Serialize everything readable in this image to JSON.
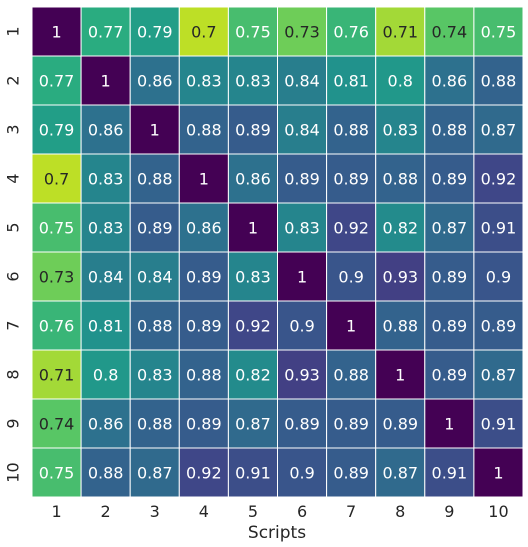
{
  "chart_data": {
    "type": "heatmap",
    "xlabel": "Scripts",
    "ylabel": "",
    "x_categories": [
      "1",
      "2",
      "3",
      "4",
      "5",
      "6",
      "7",
      "8",
      "9",
      "10"
    ],
    "y_categories": [
      "1",
      "2",
      "3",
      "4",
      "5",
      "6",
      "7",
      "8",
      "9",
      "10"
    ],
    "colormap": "viridis",
    "color_range": [
      0.7,
      1.0
    ],
    "cell_border_color": "#ffffff",
    "matrix": [
      [
        1,
        0.77,
        0.79,
        0.7,
        0.75,
        0.73,
        0.76,
        0.71,
        0.74,
        0.75
      ],
      [
        0.77,
        1,
        0.86,
        0.83,
        0.83,
        0.84,
        0.81,
        0.8,
        0.86,
        0.88
      ],
      [
        0.79,
        0.86,
        1,
        0.88,
        0.89,
        0.84,
        0.88,
        0.83,
        0.88,
        0.87
      ],
      [
        0.7,
        0.83,
        0.88,
        1,
        0.86,
        0.89,
        0.89,
        0.88,
        0.89,
        0.92
      ],
      [
        0.75,
        0.83,
        0.89,
        0.86,
        1,
        0.83,
        0.92,
        0.82,
        0.87,
        0.91
      ],
      [
        0.73,
        0.84,
        0.84,
        0.89,
        0.83,
        1,
        0.9,
        0.93,
        0.89,
        0.9
      ],
      [
        0.76,
        0.81,
        0.88,
        0.89,
        0.92,
        0.9,
        1,
        0.88,
        0.89,
        0.89
      ],
      [
        0.71,
        0.8,
        0.83,
        0.88,
        0.82,
        0.93,
        0.88,
        1,
        0.89,
        0.87
      ],
      [
        0.74,
        0.86,
        0.88,
        0.89,
        0.87,
        0.89,
        0.89,
        0.89,
        1,
        0.91
      ],
      [
        0.75,
        0.88,
        0.87,
        0.92,
        0.91,
        0.9,
        0.89,
        0.87,
        0.91,
        1
      ]
    ]
  }
}
